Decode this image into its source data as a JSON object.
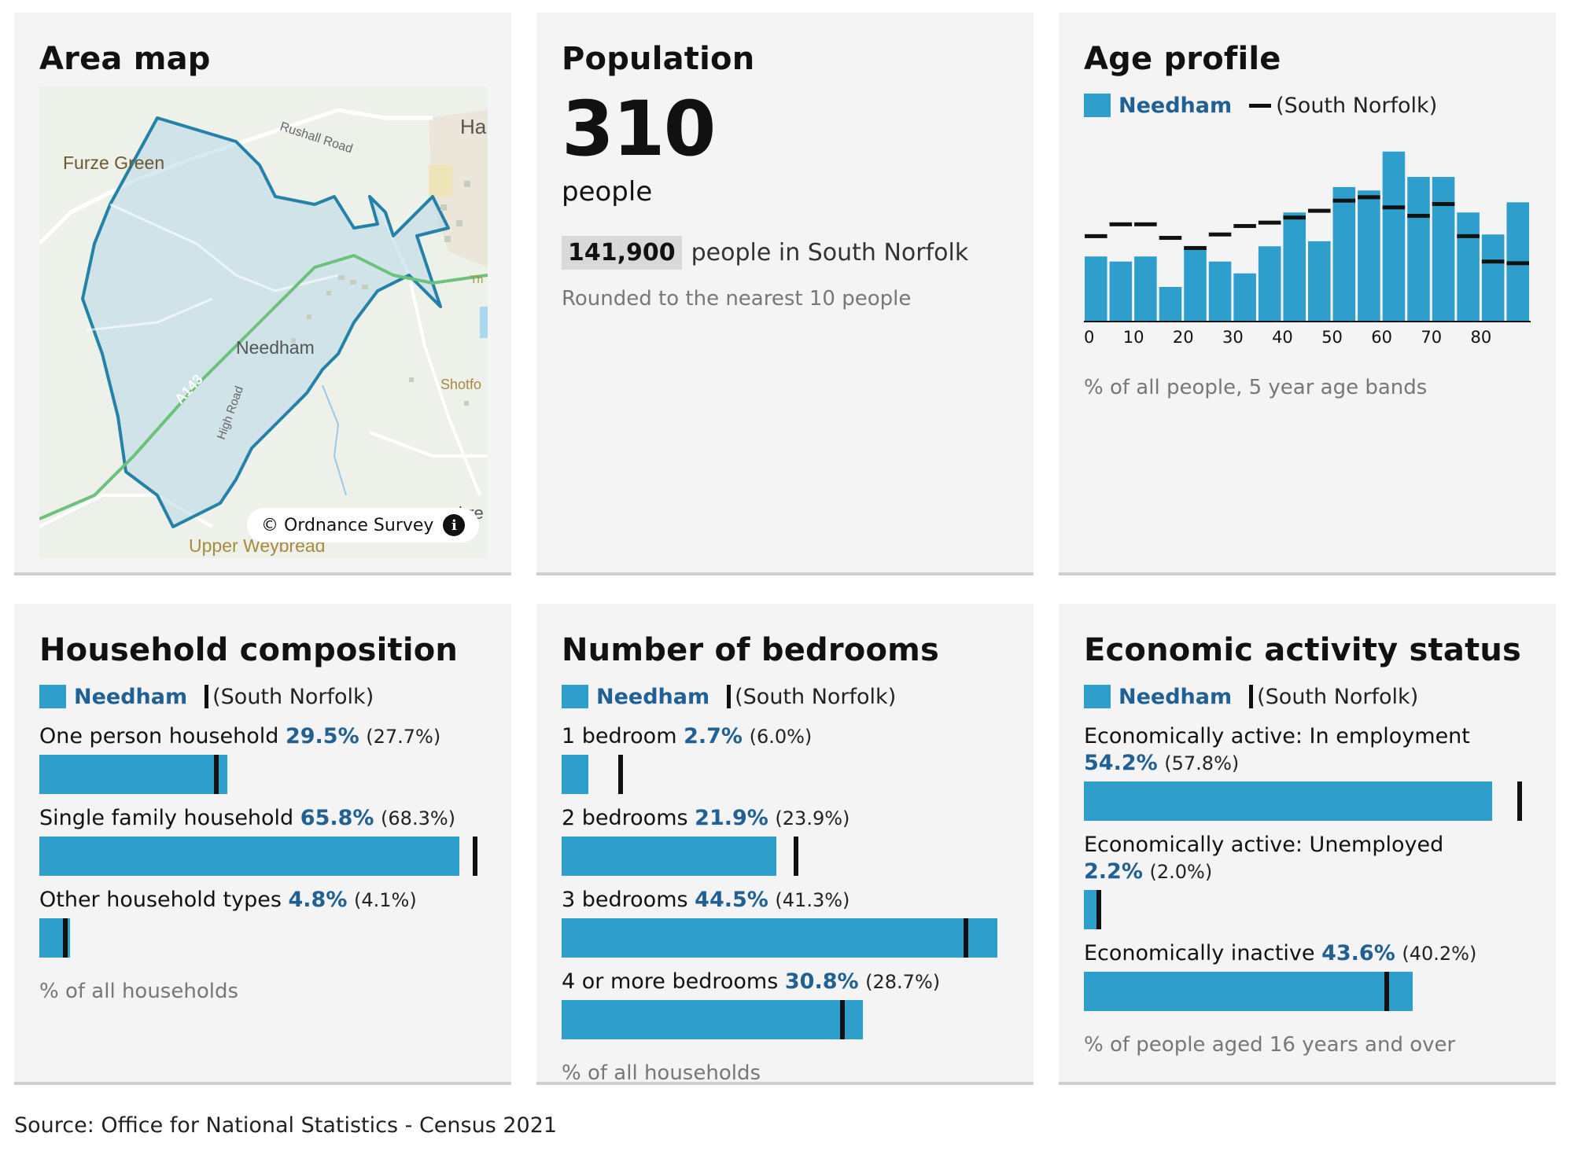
{
  "area_name": "Needham",
  "comparison_label": "(South Norfolk)",
  "colors": {
    "bar": "#2e9fcd",
    "area_text": "#206095",
    "marker": "#111111",
    "card_bg": "#f4f4f4"
  },
  "map": {
    "title": "Area map",
    "attribution": "© Ordnance Survey",
    "info_icon": "info-icon",
    "labels": {
      "furze_green": "Furze Green",
      "rushall_road": "Rushall Road",
      "needham": "Needham",
      "a143": "A143",
      "high_road": "High Road",
      "shotford": "Shotfo",
      "upper_weybread": "Upper Weybread",
      "ha": "Ha",
      "th": "Th",
      "bre": "bre"
    }
  },
  "population": {
    "title": "Population",
    "value": "310",
    "unit": "people",
    "comparison_value": "141,900",
    "comparison_text": "people in South Norfolk",
    "note": "Rounded to the nearest 10 people"
  },
  "age_profile": {
    "title": "Age profile",
    "note": "% of all people, 5 year age bands"
  },
  "household": {
    "title": "Household composition",
    "note": "% of all households"
  },
  "bedrooms": {
    "title": "Number of bedrooms",
    "note": "% of all households"
  },
  "economic": {
    "title": "Economic activity status",
    "note": "% of people aged 16 years and over"
  },
  "source": "Source: Office for National Statistics - Census 2021",
  "chart_data": [
    {
      "id": "age_profile",
      "type": "bar",
      "title": "Age profile",
      "x_ticks": [
        "0",
        "10",
        "20",
        "30",
        "40",
        "50",
        "60",
        "70",
        "80"
      ],
      "categories": [
        "0-4",
        "5-9",
        "10-14",
        "15-19",
        "20-24",
        "25-29",
        "30-34",
        "35-39",
        "40-44",
        "45-49",
        "50-54",
        "55-59",
        "60-64",
        "65-69",
        "70-74",
        "75-79",
        "80-84",
        "85-89"
      ],
      "series": [
        {
          "name": "Needham",
          "values": [
            3.8,
            3.5,
            3.8,
            2.0,
            4.4,
            3.5,
            2.8,
            4.4,
            6.4,
            4.7,
            7.9,
            7.7,
            10.0,
            8.5,
            8.5,
            6.4,
            5.1,
            7.0
          ]
        },
        {
          "name": "(South Norfolk)",
          "values": [
            5.0,
            5.7,
            5.7,
            4.9,
            4.3,
            5.1,
            5.6,
            5.8,
            6.1,
            6.5,
            7.1,
            7.3,
            6.7,
            6.2,
            6.9,
            5.0,
            3.5,
            3.4
          ]
        }
      ],
      "ylim": [
        0,
        10.5
      ],
      "xlabel": "",
      "ylabel": ""
    },
    {
      "id": "household_composition",
      "type": "bar",
      "orientation": "horizontal",
      "title": "Household composition",
      "rows": [
        {
          "label": "One person household",
          "value": 29.5,
          "value_text": "29.5%",
          "comparison": 27.7,
          "comparison_text": "(27.7%)"
        },
        {
          "label": "Single family household",
          "value": 65.8,
          "value_text": "65.8%",
          "comparison": 68.3,
          "comparison_text": "(68.3%)"
        },
        {
          "label": "Other household types",
          "value": 4.8,
          "value_text": "4.8%",
          "comparison": 4.1,
          "comparison_text": "(4.1%)"
        }
      ],
      "xlim": [
        0,
        68.3
      ]
    },
    {
      "id": "number_of_bedrooms",
      "type": "bar",
      "orientation": "horizontal",
      "title": "Number of bedrooms",
      "rows": [
        {
          "label": "1 bedroom",
          "value": 2.7,
          "value_text": "2.7%",
          "comparison": 6.0,
          "comparison_text": "(6.0%)"
        },
        {
          "label": "2 bedrooms",
          "value": 21.9,
          "value_text": "21.9%",
          "comparison": 23.9,
          "comparison_text": "(23.9%)"
        },
        {
          "label": "3 bedrooms",
          "value": 44.5,
          "value_text": "44.5%",
          "comparison": 41.3,
          "comparison_text": "(41.3%)"
        },
        {
          "label": "4 or more bedrooms",
          "value": 30.8,
          "value_text": "30.8%",
          "comparison": 28.7,
          "comparison_text": "(28.7%)"
        }
      ],
      "xlim": [
        0,
        44.5
      ]
    },
    {
      "id": "economic_activity_status",
      "type": "bar",
      "orientation": "horizontal",
      "title": "Economic activity status",
      "rows": [
        {
          "label": "Economically active: In employment",
          "value": 54.2,
          "value_text": "54.2%",
          "comparison": 57.8,
          "comparison_text": "(57.8%)",
          "wrap": true
        },
        {
          "label": "Economically active: Unemployed",
          "value": 2.2,
          "value_text": "2.2%",
          "comparison": 2.0,
          "comparison_text": "(2.0%)",
          "wrap": true
        },
        {
          "label": "Economically inactive",
          "value": 43.6,
          "value_text": "43.6%",
          "comparison": 40.2,
          "comparison_text": "(40.2%)",
          "wrap": false
        }
      ],
      "xlim": [
        0,
        57.8
      ]
    }
  ]
}
